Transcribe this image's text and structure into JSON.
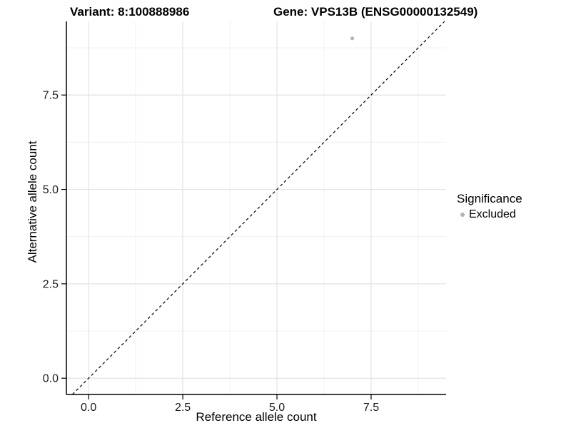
{
  "chart_data": {
    "type": "scatter",
    "titles": {
      "variant": "Variant: 8:100888986",
      "gene": "Gene: VPS13B (ENSG00000132549)"
    },
    "xlabel": "Reference allele count",
    "ylabel": "Alternative allele count",
    "xlim": [
      -0.59,
      9.49
    ],
    "ylim": [
      -0.43,
      9.45
    ],
    "x_ticks": [
      0,
      2.5,
      5,
      7.5
    ],
    "x_tick_labels": [
      "0.0",
      "2.5",
      "5.0",
      "7.5"
    ],
    "y_ticks": [
      0,
      2.5,
      5,
      7.5
    ],
    "y_tick_labels": [
      "0.0",
      "2.5",
      "5.0",
      "7.5"
    ],
    "x_minor_ticks": [
      1.25,
      3.75,
      6.25,
      8.75
    ],
    "y_minor_ticks": [
      1.25,
      3.75,
      6.25,
      8.75
    ],
    "grid": "major+minor",
    "series": [
      {
        "name": "Excluded",
        "color": "#b4b4b4",
        "points": [
          {
            "x": 7,
            "y": 9
          }
        ]
      }
    ],
    "reference_line": {
      "slope": 1,
      "intercept": 0,
      "style": "dashed",
      "color": "#000000"
    },
    "legend": {
      "title": "Significance",
      "position": "right",
      "items": [
        {
          "label": "Excluded",
          "color": "#b4b4b4"
        }
      ]
    },
    "colors": {
      "background": "#ffffff",
      "axis_line": "#000000",
      "tick_mark": "#000000",
      "tick_label": "#1a1a1a",
      "grid_major": "#e3e3e3",
      "grid_minor": "#f0f0f0",
      "point": "#b4b4b4",
      "reference_line": "#000000",
      "text": "#000000"
    }
  }
}
